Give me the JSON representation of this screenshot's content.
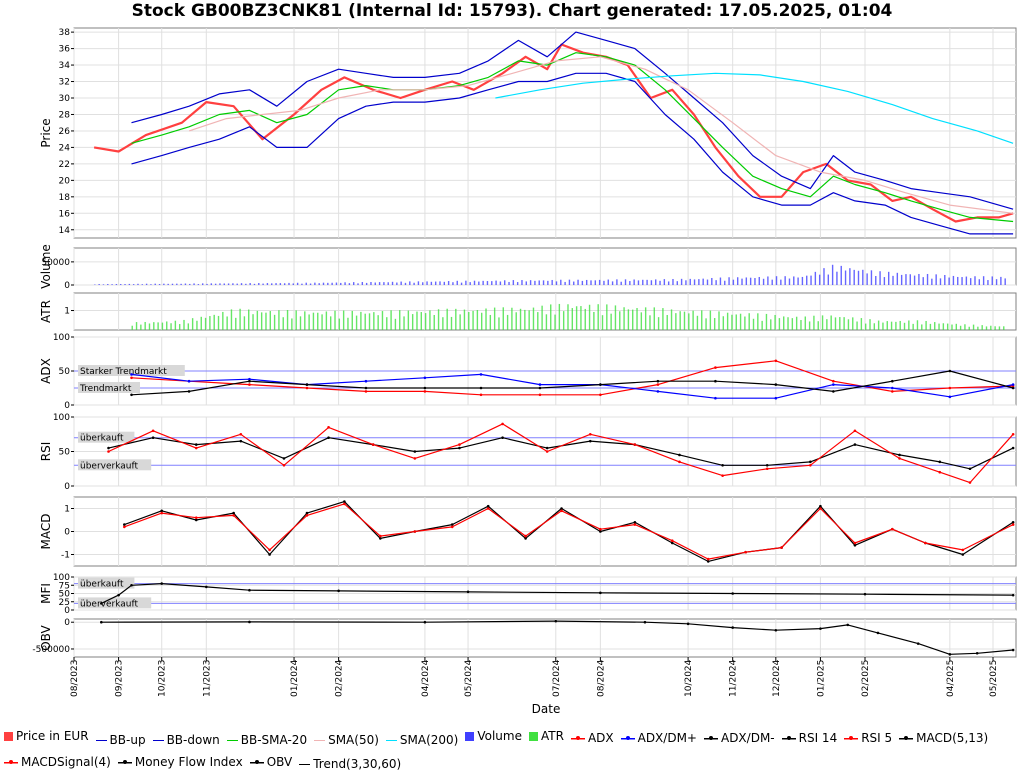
{
  "title": "Stock GB00BZ3CNK81 (Internal Id: 15793). Chart generated: 17.05.2025, 01:04",
  "xlabel": "Date",
  "x_ticks": [
    "08/2023",
    "09/2023",
    "10/2023",
    "11/2023",
    "01/2024",
    "02/2024",
    "04/2024",
    "05/2024",
    "07/2024",
    "08/2024",
    "10/2024",
    "11/2024",
    "12/2024",
    "01/2025",
    "02/2025",
    "04/2025",
    "05/2025"
  ],
  "colors": {
    "price": "#ff4040",
    "bb_band": "#0000cc",
    "bb_sma": "#00cc00",
    "sma50": "#f0b4b4",
    "sma200": "#00e0ff",
    "volume": "#4040ff",
    "atr": "#40e040",
    "adx": "#ff0000",
    "dmplus": "#0000ff",
    "dmminus": "#000000",
    "rsi14": "#000000",
    "rsi5": "#ff0000",
    "macd": "#000000",
    "macd_signal": "#ff0000",
    "mfi": "#000000",
    "obv": "#000000",
    "grid": "#e0e0e0",
    "ref_line": "#8080ff"
  },
  "legend": [
    {
      "label": "Price in EUR",
      "icon": "square",
      "color": "#ff4040"
    },
    {
      "label": "BB-up",
      "icon": "line",
      "color": "#0000cc"
    },
    {
      "label": "BB-down",
      "icon": "line",
      "color": "#0000cc"
    },
    {
      "label": "BB-SMA-20",
      "icon": "line",
      "color": "#00cc00"
    },
    {
      "label": "SMA(50)",
      "icon": "line",
      "color": "#f0b4b4"
    },
    {
      "label": "SMA(200)",
      "icon": "line",
      "color": "#00e0ff"
    },
    {
      "label": "Volume",
      "icon": "square",
      "color": "#4040ff"
    },
    {
      "label": "ATR",
      "icon": "square",
      "color": "#40e040"
    },
    {
      "label": "ADX",
      "icon": "dotline",
      "color": "#ff0000"
    },
    {
      "label": "ADX/DM+",
      "icon": "dotline",
      "color": "#0000ff"
    },
    {
      "label": "ADX/DM-",
      "icon": "dotline",
      "color": "#000000"
    },
    {
      "label": "RSI 14",
      "icon": "dotline",
      "color": "#000000"
    },
    {
      "label": "RSI 5",
      "icon": "dotline",
      "color": "#ff0000"
    },
    {
      "label": "MACD(5,13)",
      "icon": "dotline",
      "color": "#000000"
    },
    {
      "label": "MACDSignal(4)",
      "icon": "dotline",
      "color": "#ff0000"
    },
    {
      "label": "Money Flow Index",
      "icon": "dotline",
      "color": "#000000"
    },
    {
      "label": "OBV",
      "icon": "dotline",
      "color": "#000000"
    },
    {
      "label": "Trend(3,30,60)",
      "icon": "line",
      "color": "#000000"
    }
  ],
  "chart_data": [
    {
      "type": "line",
      "name": "price",
      "ylabel": "Price",
      "ylim": [
        13,
        38.5
      ],
      "y_ticks": [
        14,
        16,
        18,
        20,
        22,
        24,
        26,
        28,
        30,
        32,
        34,
        36,
        38
      ],
      "x_range": [
        "2023-08-01",
        "2025-05-17"
      ],
      "series": [
        {
          "name": "Price in EUR",
          "key": "price",
          "x": [
            "2023-08-15",
            "2023-09-01",
            "2023-09-20",
            "2023-10-15",
            "2023-11-01",
            "2023-11-20",
            "2023-12-10",
            "2024-01-01",
            "2024-01-20",
            "2024-02-05",
            "2024-02-25",
            "2024-03-15",
            "2024-04-01",
            "2024-04-20",
            "2024-05-05",
            "2024-05-25",
            "2024-06-10",
            "2024-06-25",
            "2024-07-05",
            "2024-07-20",
            "2024-08-05",
            "2024-08-20",
            "2024-09-05",
            "2024-09-20",
            "2024-10-05",
            "2024-10-20",
            "2024-11-05",
            "2024-11-20",
            "2024-12-05",
            "2024-12-20",
            "2025-01-05",
            "2025-01-20",
            "2025-02-05",
            "2025-02-20",
            "2025-03-05",
            "2025-03-20",
            "2025-04-05",
            "2025-04-20",
            "2025-05-05",
            "2025-05-15"
          ],
          "y": [
            24,
            23.5,
            25.5,
            27,
            29.5,
            29,
            25,
            28,
            31,
            32.5,
            31,
            30,
            31,
            32,
            31,
            33,
            35,
            33.5,
            36.5,
            35.5,
            35,
            34,
            30,
            31,
            28,
            24,
            20.5,
            18,
            18,
            21,
            22,
            20,
            19.5,
            17.5,
            18,
            16.5,
            15,
            15.5,
            15.5,
            16
          ]
        },
        {
          "name": "BB-up",
          "key": "bb_band",
          "x": [
            "2023-09-10",
            "2023-10-01",
            "2023-10-20",
            "2023-11-10",
            "2023-12-01",
            "2023-12-20",
            "2024-01-10",
            "2024-02-01",
            "2024-02-20",
            "2024-03-10",
            "2024-04-01",
            "2024-04-25",
            "2024-05-15",
            "2024-06-05",
            "2024-06-25",
            "2024-07-15",
            "2024-08-05",
            "2024-08-25",
            "2024-09-15",
            "2024-10-05",
            "2024-10-25",
            "2024-11-15",
            "2024-12-05",
            "2024-12-25",
            "2025-01-10",
            "2025-01-25",
            "2025-02-15",
            "2025-03-05",
            "2025-03-25",
            "2025-04-15",
            "2025-05-15"
          ],
          "y": [
            27,
            28,
            29,
            30.5,
            31,
            29,
            32,
            33.5,
            33,
            32.5,
            32.5,
            33,
            34.5,
            37,
            35,
            38,
            37,
            36,
            33,
            30,
            27,
            23,
            20.5,
            19,
            23,
            21,
            20,
            19,
            18.5,
            18,
            16.5
          ]
        },
        {
          "name": "BB-down",
          "key": "bb_band",
          "x": [
            "2023-09-10",
            "2023-10-01",
            "2023-10-20",
            "2023-11-10",
            "2023-12-01",
            "2023-12-20",
            "2024-01-10",
            "2024-02-01",
            "2024-02-20",
            "2024-03-10",
            "2024-04-01",
            "2024-04-25",
            "2024-05-15",
            "2024-06-05",
            "2024-06-25",
            "2024-07-15",
            "2024-08-05",
            "2024-08-25",
            "2024-09-15",
            "2024-10-05",
            "2024-10-25",
            "2024-11-15",
            "2024-12-05",
            "2024-12-25",
            "2025-01-10",
            "2025-01-25",
            "2025-02-15",
            "2025-03-05",
            "2025-03-25",
            "2025-04-15",
            "2025-05-15"
          ],
          "y": [
            22,
            23,
            24,
            25,
            26.5,
            24,
            24,
            27.5,
            29,
            29.5,
            29.5,
            30,
            31,
            32,
            32,
            33,
            33,
            32,
            28,
            25,
            21,
            18,
            17,
            17,
            18.5,
            17.5,
            17,
            15.5,
            14.5,
            13.5,
            13.5
          ]
        },
        {
          "name": "BB-SMA-20",
          "key": "bb_sma",
          "x": [
            "2023-09-10",
            "2023-10-01",
            "2023-10-20",
            "2023-11-10",
            "2023-12-01",
            "2023-12-20",
            "2024-01-10",
            "2024-02-01",
            "2024-02-20",
            "2024-03-10",
            "2024-04-01",
            "2024-04-25",
            "2024-05-15",
            "2024-06-05",
            "2024-06-25",
            "2024-07-15",
            "2024-08-05",
            "2024-08-25",
            "2024-09-15",
            "2024-10-05",
            "2024-10-25",
            "2024-11-15",
            "2024-12-05",
            "2024-12-25",
            "2025-01-10",
            "2025-01-25",
            "2025-02-15",
            "2025-03-05",
            "2025-03-25",
            "2025-04-15",
            "2025-05-15"
          ],
          "y": [
            24.5,
            25.5,
            26.5,
            28,
            28.5,
            27,
            28,
            31,
            31.5,
            31,
            31,
            31.5,
            32.5,
            34.5,
            34,
            35.5,
            35,
            34,
            31,
            27.5,
            24,
            20.5,
            19,
            18,
            20.5,
            19.5,
            18.5,
            17.5,
            16.5,
            15.5,
            15
          ]
        },
        {
          "name": "SMA(50)",
          "key": "sma50",
          "x": [
            "2023-10-20",
            "2023-11-15",
            "2023-12-10",
            "2024-01-05",
            "2024-02-01",
            "2024-03-01",
            "2024-04-01",
            "2024-05-01",
            "2024-06-01",
            "2024-07-01",
            "2024-08-01",
            "2024-09-01",
            "2024-10-01",
            "2024-11-01",
            "2024-12-01",
            "2025-01-01",
            "2025-02-01",
            "2025-03-01",
            "2025-04-01",
            "2025-05-15"
          ],
          "y": [
            26,
            27.5,
            28,
            28.5,
            30,
            31,
            31,
            31.5,
            33,
            34.5,
            35,
            33.5,
            31,
            27,
            23,
            21,
            20,
            18.5,
            17,
            16
          ]
        },
        {
          "name": "SMA(200)",
          "key": "sma200",
          "x": [
            "2024-05-20",
            "2024-06-20",
            "2024-07-20",
            "2024-08-20",
            "2024-09-20",
            "2024-10-20",
            "2024-11-20",
            "2024-12-20",
            "2025-01-20",
            "2025-02-20",
            "2025-03-20",
            "2025-04-20",
            "2025-05-15"
          ],
          "y": [
            30,
            31,
            31.8,
            32.3,
            32.7,
            33,
            32.8,
            32,
            30.8,
            29.2,
            27.5,
            26,
            24.5
          ]
        }
      ]
    },
    {
      "type": "bar",
      "name": "volume",
      "ylabel": "Volume",
      "ylim": [
        0,
        80000
      ],
      "y_ticks": [
        0,
        50000
      ],
      "x": [
        "2023-08-15",
        "2023-10-01",
        "2023-11-20",
        "2024-01-10",
        "2024-03-01",
        "2024-04-20",
        "2024-06-10",
        "2024-08-01",
        "2024-09-20",
        "2024-11-10",
        "2024-12-20",
        "2025-01-10",
        "2025-02-10",
        "2025-03-10",
        "2025-04-10",
        "2025-05-10"
      ],
      "values": [
        2000,
        3000,
        4000,
        5000,
        7000,
        9000,
        11000,
        12000,
        13000,
        18000,
        20000,
        45000,
        30000,
        25000,
        20000,
        18000
      ]
    },
    {
      "type": "bar",
      "name": "atr",
      "ylabel": "ATR",
      "ylim": [
        0,
        1.9
      ],
      "y_ticks": [
        1
      ],
      "x": [
        "2023-09-10",
        "2023-10-15",
        "2023-11-20",
        "2024-01-10",
        "2024-03-01",
        "2024-04-20",
        "2024-06-10",
        "2024-07-10",
        "2024-08-10",
        "2024-09-20",
        "2024-11-10",
        "2024-12-20",
        "2025-01-10",
        "2025-02-10",
        "2025-03-10",
        "2025-04-10",
        "2025-05-10"
      ],
      "values": [
        0.4,
        0.5,
        1.1,
        1.0,
        1.0,
        1.1,
        1.2,
        1.4,
        1.3,
        1.1,
        0.9,
        0.7,
        0.8,
        0.5,
        0.5,
        0.3,
        0.2
      ]
    },
    {
      "type": "line",
      "name": "adx",
      "ylabel": "ADX",
      "ylim": [
        0,
        100
      ],
      "y_ticks": [
        0,
        50,
        100
      ],
      "zones": [
        {
          "label": "Starker Trendmarkt",
          "value": 50
        },
        {
          "label": "Trendmarkt",
          "value": 25
        }
      ],
      "x": [
        "2023-09-10",
        "2023-10-20",
        "2023-12-01",
        "2024-01-10",
        "2024-02-20",
        "2024-04-01",
        "2024-05-10",
        "2024-06-20",
        "2024-08-01",
        "2024-09-10",
        "2024-10-20",
        "2024-12-01",
        "2025-01-10",
        "2025-02-20",
        "2025-04-01",
        "2025-05-15"
      ],
      "series": [
        {
          "name": "ADX",
          "key": "adx",
          "y": [
            40,
            35,
            30,
            25,
            20,
            20,
            15,
            15,
            15,
            30,
            55,
            65,
            35,
            20,
            25,
            28
          ]
        },
        {
          "name": "ADX/DM+",
          "key": "dmplus",
          "y": [
            45,
            35,
            38,
            30,
            35,
            40,
            45,
            30,
            30,
            20,
            10,
            10,
            30,
            25,
            12,
            30
          ]
        },
        {
          "name": "ADX/DM-",
          "key": "dmminus",
          "y": [
            15,
            20,
            35,
            30,
            25,
            25,
            25,
            25,
            30,
            35,
            35,
            30,
            20,
            35,
            50,
            25
          ]
        }
      ]
    },
    {
      "type": "line",
      "name": "rsi",
      "ylabel": "RSI",
      "ylim": [
        0,
        100
      ],
      "y_ticks": [
        0,
        50,
        100
      ],
      "zones": [
        {
          "label": "überkauft",
          "value": 70
        },
        {
          "label": "überverkauft",
          "value": 30
        }
      ],
      "x": [
        "2023-08-25",
        "2023-09-25",
        "2023-10-25",
        "2023-11-25",
        "2023-12-25",
        "2024-01-25",
        "2024-02-25",
        "2024-03-25",
        "2024-04-25",
        "2024-05-25",
        "2024-06-25",
        "2024-07-25",
        "2024-08-25",
        "2024-09-25",
        "2024-10-25",
        "2024-11-25",
        "2024-12-25",
        "2025-01-25",
        "2025-02-25",
        "2025-03-25",
        "2025-04-15",
        "2025-05-15"
      ],
      "series": [
        {
          "name": "RSI 14",
          "key": "rsi14",
          "y": [
            55,
            70,
            60,
            65,
            40,
            70,
            60,
            50,
            55,
            70,
            55,
            65,
            60,
            45,
            30,
            30,
            35,
            60,
            45,
            35,
            25,
            55
          ]
        },
        {
          "name": "RSI 5",
          "key": "rsi5",
          "y": [
            50,
            80,
            55,
            75,
            30,
            85,
            60,
            40,
            60,
            90,
            50,
            75,
            60,
            35,
            15,
            25,
            30,
            80,
            40,
            20,
            5,
            75
          ]
        }
      ]
    },
    {
      "type": "line",
      "name": "macd",
      "ylabel": "MACD",
      "ylim": [
        -1.5,
        1.5
      ],
      "y_ticks": [
        -1,
        0,
        1
      ],
      "x": [
        "2023-09-05",
        "2023-10-01",
        "2023-10-25",
        "2023-11-20",
        "2023-12-15",
        "2024-01-10",
        "2024-02-05",
        "2024-03-01",
        "2024-03-25",
        "2024-04-20",
        "2024-05-15",
        "2024-06-10",
        "2024-07-05",
        "2024-08-01",
        "2024-08-25",
        "2024-09-20",
        "2024-10-15",
        "2024-11-10",
        "2024-12-05",
        "2025-01-01",
        "2025-01-25",
        "2025-02-20",
        "2025-03-15",
        "2025-04-10",
        "2025-05-15"
      ],
      "series": [
        {
          "name": "MACD(5,13)",
          "key": "macd",
          "y": [
            0.3,
            0.9,
            0.5,
            0.8,
            -1.0,
            0.8,
            1.3,
            -0.3,
            0.0,
            0.3,
            1.1,
            -0.3,
            1.0,
            0.0,
            0.4,
            -0.5,
            -1.3,
            -0.9,
            -0.7,
            1.1,
            -0.6,
            0.1,
            -0.5,
            -1.0,
            0.4
          ]
        },
        {
          "name": "MACDSignal(4)",
          "key": "macd_signal",
          "y": [
            0.2,
            0.8,
            0.6,
            0.7,
            -0.8,
            0.7,
            1.2,
            -0.2,
            0.0,
            0.2,
            1.0,
            -0.2,
            0.9,
            0.1,
            0.3,
            -0.4,
            -1.2,
            -0.9,
            -0.7,
            1.0,
            -0.5,
            0.1,
            -0.5,
            -0.8,
            0.3
          ]
        }
      ]
    },
    {
      "type": "line",
      "name": "mfi",
      "ylabel": "MFI",
      "ylim": [
        0,
        100
      ],
      "y_ticks": [
        0,
        25,
        50,
        75,
        100
      ],
      "zones": [
        {
          "label": "überkauft",
          "value": 80
        },
        {
          "label": "überverkauft",
          "value": 20
        }
      ],
      "x": [
        "2023-08-20",
        "2023-09-01",
        "2023-09-10",
        "2023-10-01",
        "2023-11-01",
        "2023-12-01",
        "2024-02-01",
        "2024-05-01",
        "2024-08-01",
        "2024-11-01",
        "2025-02-01",
        "2025-05-15"
      ],
      "series": [
        {
          "name": "Money Flow Index",
          "key": "mfi",
          "y": [
            20,
            45,
            75,
            80,
            70,
            60,
            58,
            55,
            52,
            50,
            48,
            45
          ]
        }
      ]
    },
    {
      "type": "line",
      "name": "obv",
      "ylabel": "OBV",
      "ylim": [
        -650000,
        60000
      ],
      "y_ticks": [
        0,
        -500000
      ],
      "x": [
        "2023-08-20",
        "2023-12-01",
        "2024-04-01",
        "2024-07-01",
        "2024-09-01",
        "2024-10-01",
        "2024-11-01",
        "2024-12-01",
        "2025-01-01",
        "2025-01-20",
        "2025-02-10",
        "2025-03-10",
        "2025-04-01",
        "2025-04-20",
        "2025-05-15"
      ],
      "series": [
        {
          "name": "OBV",
          "key": "obv",
          "y": [
            0,
            5000,
            0,
            20000,
            0,
            -30000,
            -100000,
            -150000,
            -120000,
            -50000,
            -200000,
            -400000,
            -600000,
            -580000,
            -520000
          ]
        }
      ]
    }
  ]
}
